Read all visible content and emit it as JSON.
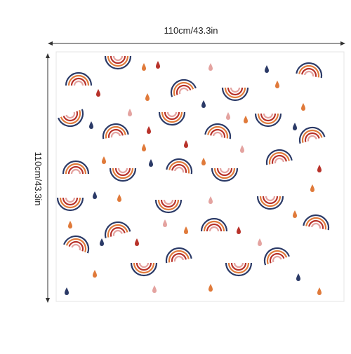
{
  "dimensions": {
    "width_label": "110cm/43.3in",
    "height_label": "110cm/43.3in"
  }
}
